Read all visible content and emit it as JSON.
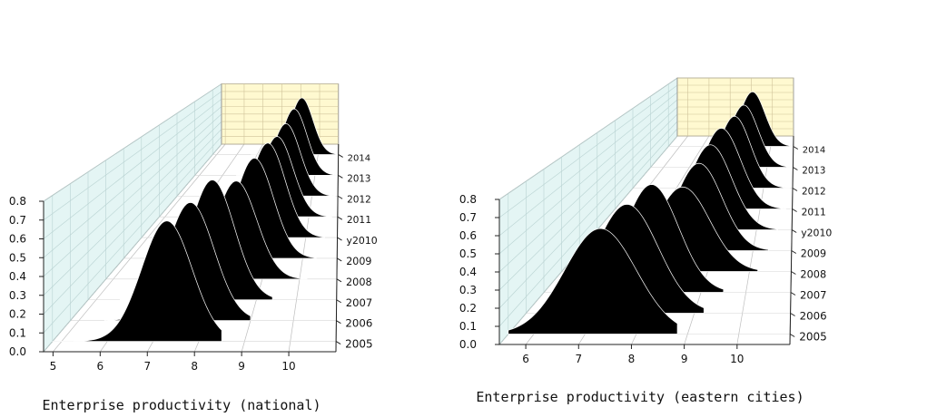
{
  "chart_data": [
    {
      "type": "area",
      "title": "",
      "xlabel": "Enterprise productivity (national)",
      "ylabel": "",
      "zlabel": "",
      "xlim": [
        4.8,
        11.0
      ],
      "ylim": [
        0,
        0.8
      ],
      "x_ticks": [
        "5",
        "6",
        "7",
        "8",
        "9",
        "10"
      ],
      "y_ticks": [
        "0.0",
        "0.1",
        "0.2",
        "0.3",
        "0.4",
        "0.5",
        "0.6",
        "0.7",
        "0.8"
      ],
      "series_axis_labels": [
        "2005",
        "2006",
        "2007",
        "2008",
        "2009",
        "y2010",
        "2011",
        "2012",
        "2013",
        "2014"
      ],
      "back_wall_color": "#fff9d0",
      "side_wall_color": "#e4f5f4",
      "fill_color": "#000000",
      "series": [
        {
          "name": "2005",
          "mean": 7.3,
          "sd": 0.55,
          "peak": 0.66,
          "xmin": 4.8,
          "xmax": 8.5
        },
        {
          "name": "2006",
          "mean": 7.6,
          "sd": 0.55,
          "peak": 0.69,
          "xmin": 5.6,
          "xmax": 9.0
        },
        {
          "name": "2007",
          "mean": 7.9,
          "sd": 0.55,
          "peak": 0.75,
          "xmin": 5.6,
          "xmax": 9.4
        },
        {
          "name": "2008",
          "mean": 8.3,
          "sd": 0.55,
          "peak": 0.66,
          "xmin": 6.0,
          "xmax": 10.2
        },
        {
          "name": "2009",
          "mean": 8.6,
          "sd": 0.55,
          "peak": 0.73,
          "xmin": 6.0,
          "xmax": 10.4
        },
        {
          "name": "y2010",
          "mean": 8.8,
          "sd": 0.55,
          "peak": 0.75,
          "xmin": 6.3,
          "xmax": 10.6
        },
        {
          "name": "2011",
          "mean": 8.9,
          "sd": 0.55,
          "peak": 0.7,
          "xmin": 6.5,
          "xmax": 10.8
        },
        {
          "name": "2012",
          "mean": 9.0,
          "sd": 0.55,
          "peak": 0.7,
          "xmin": 6.5,
          "xmax": 10.9
        },
        {
          "name": "2013",
          "mean": 9.1,
          "sd": 0.55,
          "peak": 0.72,
          "xmin": 6.6,
          "xmax": 11.0
        },
        {
          "name": "2014",
          "mean": 9.2,
          "sd": 0.55,
          "peak": 0.7,
          "xmin": 6.7,
          "xmax": 11.0
        }
      ]
    },
    {
      "type": "area",
      "title": "",
      "xlabel": "Enterprise productivity (eastern cities)",
      "ylabel": "",
      "zlabel": "",
      "xlim": [
        5.5,
        11.0
      ],
      "ylim": [
        0,
        0.8
      ],
      "x_ticks": [
        "6",
        "7",
        "8",
        "9",
        "10"
      ],
      "y_ticks": [
        "0.0",
        "0.1",
        "0.2",
        "0.3",
        "0.4",
        "0.5",
        "0.6",
        "0.7",
        "0.8"
      ],
      "series_axis_labels": [
        "2005",
        "2006",
        "2007",
        "2008",
        "2009",
        "y2010",
        "2011",
        "2012",
        "2013",
        "2014"
      ],
      "back_wall_color": "#fff9d0",
      "side_wall_color": "#e4f5f4",
      "fill_color": "#000000",
      "series": [
        {
          "name": "2005",
          "mean": 7.3,
          "sd": 0.7,
          "peak": 0.6,
          "xmin": 5.5,
          "xmax": 8.8
        },
        {
          "name": "2006",
          "mean": 7.6,
          "sd": 0.65,
          "peak": 0.66,
          "xmin": 5.9,
          "xmax": 9.2
        },
        {
          "name": "2007",
          "mean": 7.9,
          "sd": 0.6,
          "peak": 0.7,
          "xmin": 6.0,
          "xmax": 9.5
        },
        {
          "name": "2008",
          "mean": 8.4,
          "sd": 0.65,
          "peak": 0.59,
          "xmin": 6.3,
          "xmax": 10.2
        },
        {
          "name": "2009",
          "mean": 8.6,
          "sd": 0.6,
          "peak": 0.66,
          "xmin": 6.4,
          "xmax": 10.4
        },
        {
          "name": "y2010",
          "mean": 8.7,
          "sd": 0.6,
          "peak": 0.7,
          "xmin": 6.6,
          "xmax": 10.6
        },
        {
          "name": "2011",
          "mean": 8.8,
          "sd": 0.6,
          "peak": 0.73,
          "xmin": 6.8,
          "xmax": 10.8
        },
        {
          "name": "2012",
          "mean": 9.0,
          "sd": 0.55,
          "peak": 0.72,
          "xmin": 7.0,
          "xmax": 10.9
        },
        {
          "name": "2013",
          "mean": 9.1,
          "sd": 0.55,
          "peak": 0.7,
          "xmin": 7.1,
          "xmax": 11.0
        },
        {
          "name": "2014",
          "mean": 9.2,
          "sd": 0.55,
          "peak": 0.7,
          "xmin": 7.2,
          "xmax": 11.0
        }
      ]
    }
  ]
}
